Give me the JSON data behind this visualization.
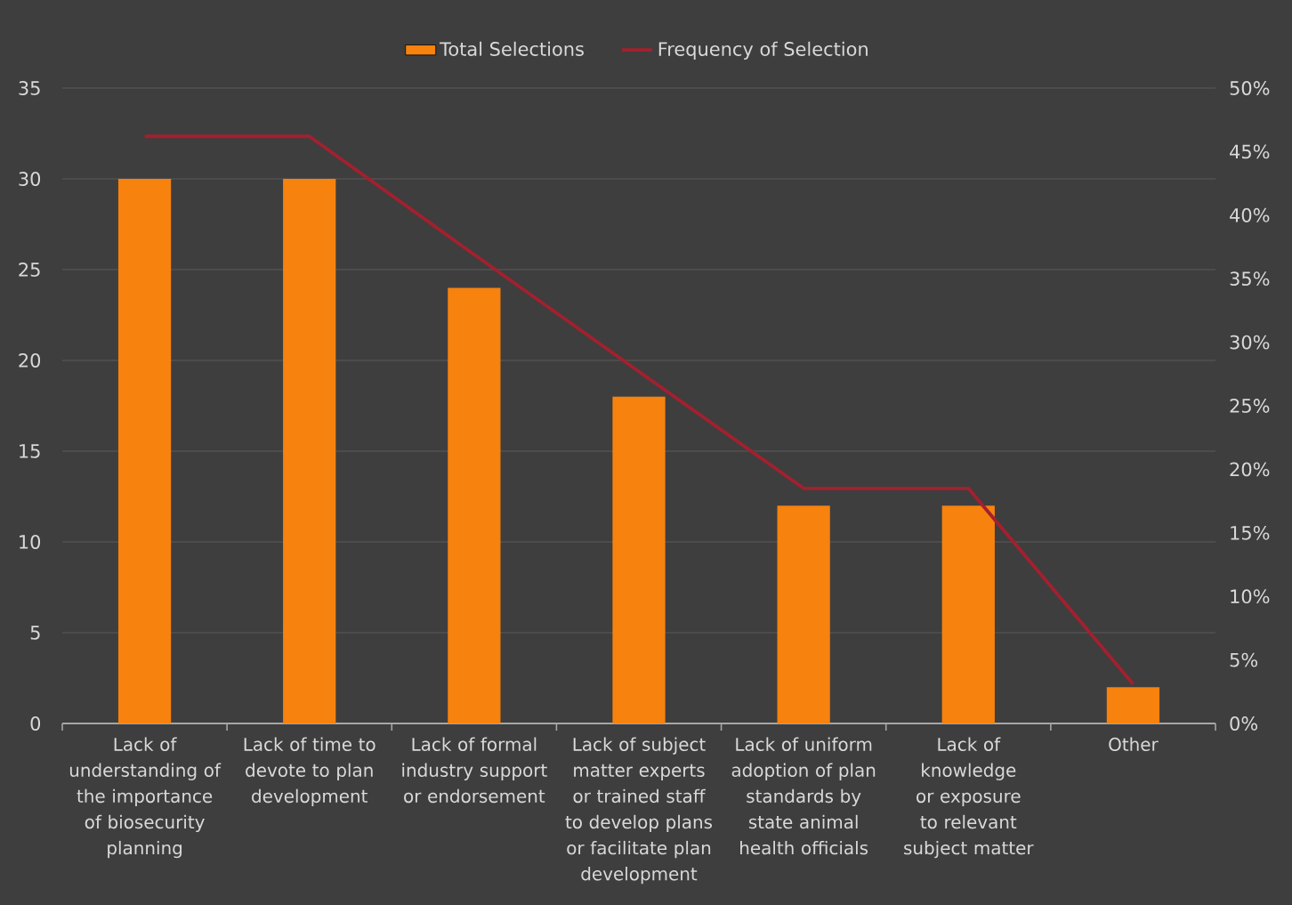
{
  "chart_data": {
    "type": "bar",
    "categories": [
      "Lack of understanding of the importance of biosecurity planning",
      "Lack of time to devote to plan development",
      "Lack of formal industry support or endorsement",
      "Lack of subject matter experts or trained staff to develop plans or facilitate plan development",
      "Lack of uniform adoption of plan standards by state animal health officials",
      "Lack of knowledge or exposure to relevant subject matter",
      "Other"
    ],
    "series": [
      {
        "name": "Total Selections",
        "color": "#f7820e",
        "values": [
          30,
          30,
          24,
          18,
          12,
          12,
          2
        ]
      },
      {
        "name": "Frequency of Selection",
        "type": "line",
        "axis": "y2",
        "color": "#a3202f",
        "values": [
          46.2,
          46.2,
          36.9,
          27.7,
          18.5,
          18.5,
          3.1
        ]
      }
    ],
    "ylim": [
      0,
      35
    ],
    "yticks": [
      0,
      5,
      10,
      15,
      20,
      25,
      30,
      35
    ],
    "y2lim": [
      0,
      50
    ],
    "y2ticks": [
      {
        "value": 0,
        "label": "0%"
      },
      {
        "value": 5,
        "label": "5%"
      },
      {
        "value": 10,
        "label": "10%"
      },
      {
        "value": 15,
        "label": "15%"
      },
      {
        "value": 20,
        "label": "20%"
      },
      {
        "value": 25,
        "label": "25%"
      },
      {
        "value": 30,
        "label": "30%"
      },
      {
        "value": 35,
        "label": "35%"
      },
      {
        "value": 40,
        "label": "40%"
      },
      {
        "value": 45,
        "label": "45%"
      },
      {
        "value": 50,
        "label": "50%"
      }
    ],
    "grid": "y",
    "legend": "top"
  }
}
